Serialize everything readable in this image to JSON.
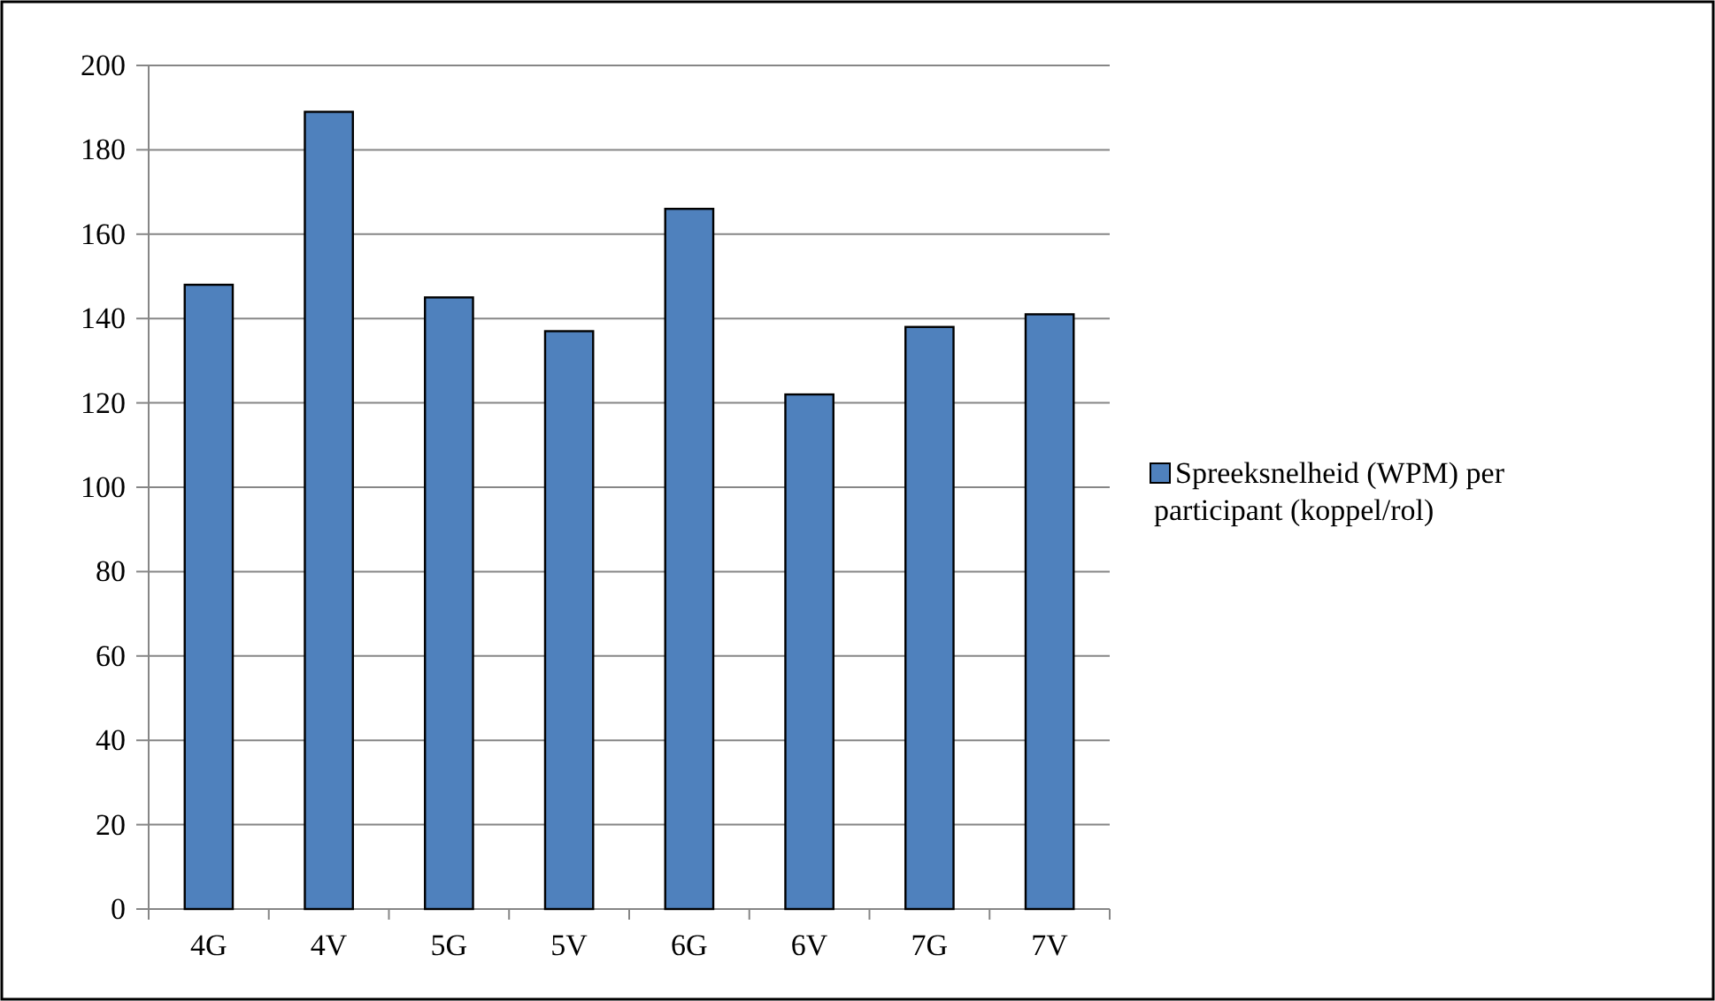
{
  "chart_data": {
    "type": "bar",
    "categories": [
      "4G",
      "4V",
      "5G",
      "5V",
      "6G",
      "6V",
      "7G",
      "7V"
    ],
    "series": [
      {
        "name": "Spreeksnelheid (WPM) per participant (koppel/rol)",
        "color": "#4f81bd",
        "values": [
          148,
          189,
          145,
          137,
          166,
          122,
          138,
          141
        ]
      }
    ],
    "ylim": [
      0,
      200
    ],
    "yticks": [
      0,
      20,
      40,
      60,
      80,
      100,
      120,
      140,
      160,
      180,
      200
    ],
    "grid": "y",
    "legend": "right"
  }
}
